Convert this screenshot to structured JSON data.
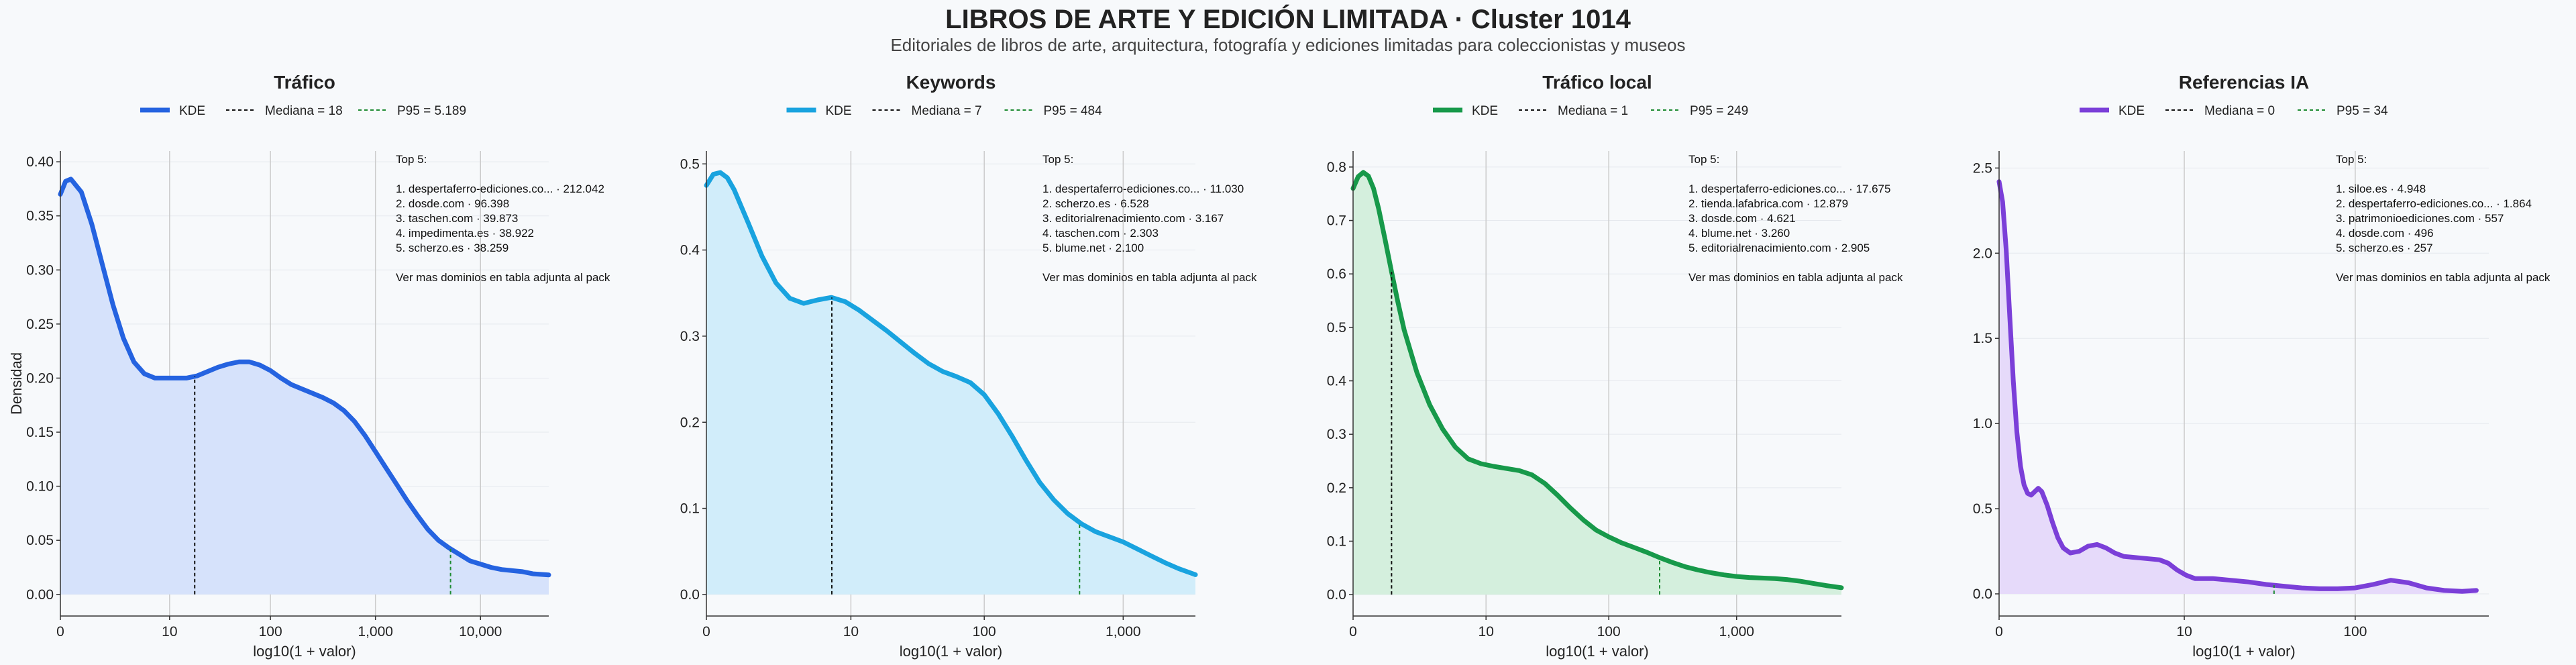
{
  "title": "LIBROS DE ARTE Y EDICIÓN LIMITADA · Cluster 1014",
  "subtitle": "Editoriales de libros de arte, arquitectura, fotografía y ediciones limitadas para coleccionistas y museos",
  "colors": {
    "background": "#f7f9fb",
    "grid": "#cccccc",
    "p95_line": "#1e8b32",
    "median_line": "#111111"
  },
  "chart_data": [
    {
      "type": "area",
      "title": "Tráfico",
      "color": "#2563e0",
      "fill": "#d6e2fb",
      "xlabel": "log10(1 + valor)",
      "ylabel": "Densidad",
      "xlim": [
        0,
        4.65
      ],
      "ylim": [
        -0.02,
        0.41
      ],
      "xticks": [
        {
          "v": 0,
          "label": "0"
        },
        {
          "v": 1.04,
          "label": "10"
        },
        {
          "v": 2.0,
          "label": "100"
        },
        {
          "v": 3.0,
          "label": "1,000"
        },
        {
          "v": 4.0,
          "label": "10,000"
        }
      ],
      "yticks": [
        {
          "v": 0.0,
          "label": "0.00"
        },
        {
          "v": 0.05,
          "label": "0.05"
        },
        {
          "v": 0.1,
          "label": "0.10"
        },
        {
          "v": 0.15,
          "label": "0.15"
        },
        {
          "v": 0.2,
          "label": "0.20"
        },
        {
          "v": 0.25,
          "label": "0.25"
        },
        {
          "v": 0.3,
          "label": "0.30"
        },
        {
          "v": 0.35,
          "label": "0.35"
        },
        {
          "v": 0.4,
          "label": "0.40"
        }
      ],
      "legend": {
        "kde": "KDE",
        "median": "Mediana = 18",
        "p95": "P95 = 5.189"
      },
      "median_x": 1.279,
      "p95_x": 3.715,
      "x": [
        0,
        0.05,
        0.1,
        0.2,
        0.3,
        0.4,
        0.5,
        0.6,
        0.7,
        0.8,
        0.9,
        1.0,
        1.1,
        1.2,
        1.3,
        1.4,
        1.5,
        1.6,
        1.7,
        1.8,
        1.9,
        2.0,
        2.1,
        2.2,
        2.3,
        2.4,
        2.5,
        2.6,
        2.7,
        2.8,
        2.9,
        3.0,
        3.1,
        3.2,
        3.3,
        3.4,
        3.5,
        3.6,
        3.7,
        3.8,
        3.9,
        4.0,
        4.1,
        4.2,
        4.3,
        4.4,
        4.5,
        4.65
      ],
      "y": [
        0.37,
        0.382,
        0.384,
        0.372,
        0.342,
        0.305,
        0.268,
        0.237,
        0.215,
        0.204,
        0.2,
        0.2,
        0.2,
        0.2,
        0.202,
        0.206,
        0.21,
        0.213,
        0.215,
        0.215,
        0.212,
        0.207,
        0.2,
        0.194,
        0.19,
        0.186,
        0.182,
        0.177,
        0.17,
        0.16,
        0.147,
        0.132,
        0.117,
        0.102,
        0.087,
        0.073,
        0.06,
        0.05,
        0.043,
        0.037,
        0.031,
        0.028,
        0.025,
        0.023,
        0.022,
        0.021,
        0.019,
        0.018
      ],
      "top5": {
        "heading": "Top 5:",
        "items": [
          "1. despertaferro-ediciones.co... · 212.042",
          "2. dosde.com · 96.398",
          "3. taschen.com · 39.873",
          "4. impedimenta.es · 38.922",
          "5. scherzo.es · 38.259"
        ],
        "note": "Ver mas dominios en tabla adjunta al pack"
      }
    },
    {
      "type": "area",
      "title": "Keywords",
      "color": "#19a3df",
      "fill": "#d1edfa",
      "xlabel": "log10(1 + valor)",
      "ylabel": "",
      "xlim": [
        0,
        3.52
      ],
      "ylim": [
        -0.025,
        0.515
      ],
      "xticks": [
        {
          "v": 0,
          "label": "0"
        },
        {
          "v": 1.04,
          "label": "10"
        },
        {
          "v": 2.0,
          "label": "100"
        },
        {
          "v": 3.0,
          "label": "1,000"
        }
      ],
      "yticks": [
        {
          "v": 0.0,
          "label": "0.0"
        },
        {
          "v": 0.1,
          "label": "0.1"
        },
        {
          "v": 0.2,
          "label": "0.2"
        },
        {
          "v": 0.3,
          "label": "0.3"
        },
        {
          "v": 0.4,
          "label": "0.4"
        },
        {
          "v": 0.5,
          "label": "0.5"
        }
      ],
      "legend": {
        "kde": "KDE",
        "median": "Mediana = 7",
        "p95": "P95 = 484"
      },
      "median_x": 0.903,
      "p95_x": 2.686,
      "x": [
        0,
        0.05,
        0.1,
        0.15,
        0.2,
        0.3,
        0.4,
        0.5,
        0.6,
        0.7,
        0.8,
        0.9,
        1.0,
        1.1,
        1.2,
        1.3,
        1.4,
        1.5,
        1.6,
        1.7,
        1.8,
        1.9,
        2.0,
        2.1,
        2.2,
        2.3,
        2.4,
        2.5,
        2.6,
        2.7,
        2.8,
        2.9,
        3.0,
        3.1,
        3.2,
        3.3,
        3.4,
        3.52
      ],
      "y": [
        0.475,
        0.488,
        0.49,
        0.484,
        0.47,
        0.432,
        0.393,
        0.362,
        0.344,
        0.338,
        0.342,
        0.345,
        0.34,
        0.33,
        0.318,
        0.306,
        0.293,
        0.28,
        0.268,
        0.259,
        0.253,
        0.246,
        0.232,
        0.21,
        0.184,
        0.156,
        0.13,
        0.11,
        0.094,
        0.082,
        0.073,
        0.067,
        0.061,
        0.053,
        0.045,
        0.037,
        0.03,
        0.023
      ],
      "top5": {
        "heading": "Top 5:",
        "items": [
          "1. despertaferro-ediciones.co... · 11.030",
          "2. scherzo.es · 6.528",
          "3. editorialrenacimiento.com · 3.167",
          "4. taschen.com · 2.303",
          "5. blume.net · 2.100"
        ],
        "note": "Ver mas dominios en tabla adjunta al pack"
      }
    },
    {
      "type": "area",
      "title": "Tráfico local",
      "color": "#17994a",
      "fill": "#d4efdd",
      "xlabel": "log10(1 + valor)",
      "ylabel": "",
      "xlim": [
        0,
        3.82
      ],
      "ylim": [
        -0.04,
        0.83
      ],
      "xticks": [
        {
          "v": 0,
          "label": "0"
        },
        {
          "v": 1.04,
          "label": "10"
        },
        {
          "v": 2.0,
          "label": "100"
        },
        {
          "v": 3.0,
          "label": "1,000"
        }
      ],
      "yticks": [
        {
          "v": 0.0,
          "label": "0.0"
        },
        {
          "v": 0.1,
          "label": "0.1"
        },
        {
          "v": 0.2,
          "label": "0.2"
        },
        {
          "v": 0.3,
          "label": "0.3"
        },
        {
          "v": 0.4,
          "label": "0.4"
        },
        {
          "v": 0.5,
          "label": "0.5"
        },
        {
          "v": 0.6,
          "label": "0.6"
        },
        {
          "v": 0.7,
          "label": "0.7"
        },
        {
          "v": 0.8,
          "label": "0.8"
        }
      ],
      "legend": {
        "kde": "KDE",
        "median": "Mediana = 1",
        "p95": "P95 = 249"
      },
      "median_x": 0.301,
      "p95_x": 2.398,
      "x": [
        0,
        0.04,
        0.08,
        0.12,
        0.16,
        0.2,
        0.25,
        0.3,
        0.35,
        0.4,
        0.5,
        0.6,
        0.7,
        0.8,
        0.9,
        1.0,
        1.1,
        1.2,
        1.3,
        1.4,
        1.5,
        1.6,
        1.7,
        1.8,
        1.9,
        2.0,
        2.1,
        2.2,
        2.3,
        2.4,
        2.5,
        2.6,
        2.7,
        2.8,
        2.9,
        3.0,
        3.1,
        3.2,
        3.3,
        3.4,
        3.5,
        3.6,
        3.7,
        3.82
      ],
      "y": [
        0.76,
        0.782,
        0.79,
        0.783,
        0.76,
        0.722,
        0.665,
        0.605,
        0.548,
        0.495,
        0.415,
        0.355,
        0.31,
        0.276,
        0.254,
        0.245,
        0.24,
        0.236,
        0.232,
        0.224,
        0.208,
        0.186,
        0.162,
        0.14,
        0.121,
        0.108,
        0.097,
        0.088,
        0.079,
        0.069,
        0.06,
        0.052,
        0.046,
        0.041,
        0.037,
        0.034,
        0.032,
        0.031,
        0.03,
        0.028,
        0.025,
        0.021,
        0.017,
        0.013
      ],
      "top5": {
        "heading": "Top 5:",
        "items": [
          "1. despertaferro-ediciones.co... · 17.675",
          "2. tienda.lafabrica.com · 12.879",
          "3. dosde.com · 4.621",
          "4. blume.net · 3.260",
          "5. editorialrenacimiento.com · 2.905"
        ],
        "note": "Ver mas dominios en tabla adjunta al pack"
      }
    },
    {
      "type": "area",
      "title": "Referencias IA",
      "color": "#7b3fd8",
      "fill": "#e6dafa",
      "xlabel": "log10(1 + valor)",
      "ylabel": "",
      "xlim": [
        0,
        2.75
      ],
      "ylim": [
        -0.13,
        2.6
      ],
      "xticks": [
        {
          "v": 0,
          "label": "0"
        },
        {
          "v": 1.04,
          "label": "10"
        },
        {
          "v": 2.0,
          "label": "100"
        }
      ],
      "yticks": [
        {
          "v": 0.0,
          "label": "0.0"
        },
        {
          "v": 0.5,
          "label": "0.5"
        },
        {
          "v": 1.0,
          "label": "1.0"
        },
        {
          "v": 1.5,
          "label": "1.5"
        },
        {
          "v": 2.0,
          "label": "2.0"
        },
        {
          "v": 2.5,
          "label": "2.5"
        }
      ],
      "legend": {
        "kde": "KDE",
        "median": "Mediana = 0",
        "p95": "P95 = 34"
      },
      "median_x": 0,
      "p95_x": 1.544,
      "x": [
        0,
        0.02,
        0.04,
        0.06,
        0.08,
        0.1,
        0.12,
        0.14,
        0.16,
        0.18,
        0.2,
        0.22,
        0.24,
        0.27,
        0.3,
        0.33,
        0.36,
        0.4,
        0.45,
        0.5,
        0.55,
        0.6,
        0.65,
        0.7,
        0.8,
        0.9,
        0.95,
        1.0,
        1.05,
        1.1,
        1.2,
        1.3,
        1.4,
        1.5,
        1.6,
        1.7,
        1.8,
        1.9,
        2.0,
        2.1,
        2.2,
        2.3,
        2.4,
        2.5,
        2.6,
        2.68
      ],
      "y": [
        2.42,
        2.3,
        2.02,
        1.63,
        1.25,
        0.95,
        0.75,
        0.64,
        0.59,
        0.58,
        0.6,
        0.62,
        0.6,
        0.52,
        0.42,
        0.33,
        0.27,
        0.24,
        0.25,
        0.28,
        0.29,
        0.27,
        0.24,
        0.22,
        0.21,
        0.2,
        0.18,
        0.14,
        0.11,
        0.09,
        0.09,
        0.08,
        0.07,
        0.055,
        0.045,
        0.035,
        0.03,
        0.03,
        0.035,
        0.055,
        0.08,
        0.065,
        0.035,
        0.02,
        0.015,
        0.02
      ],
      "top5": {
        "heading": "Top 5:",
        "items": [
          "1. siloe.es · 4.948",
          "2. despertaferro-ediciones.co... · 1.864",
          "3. patrimonioediciones.com · 557",
          "4. dosde.com · 496",
          "5. scherzo.es · 257"
        ],
        "note": "Ver mas dominios en tabla adjunta al pack"
      }
    }
  ]
}
